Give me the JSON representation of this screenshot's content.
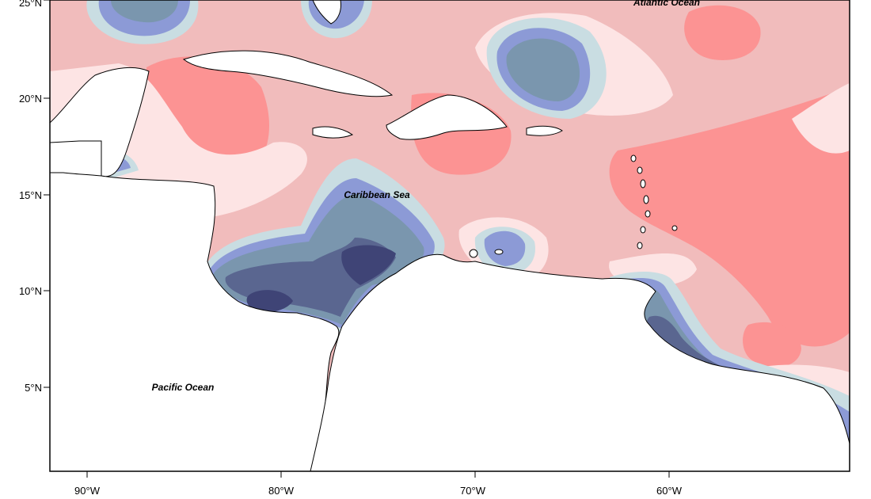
{
  "map": {
    "labels": {
      "atlantic": "Atlantic Ocean",
      "caribbean": "Caribbean Sea",
      "pacific": "Pacific Ocean"
    },
    "lat_ticks": [
      "25°N",
      "20°N",
      "15°N",
      "10°N",
      "5°N"
    ],
    "lon_ticks": [
      "90°W",
      "80°W",
      "70°W",
      "60°W"
    ],
    "extent": {
      "lon_min": -92,
      "lon_max": -51,
      "lat_min": 1,
      "lat_max": 25.5
    },
    "colors": {
      "neg_strong": "#3f4476",
      "neg_mid": "#5a6690",
      "neg_weak": "#7a96ae",
      "neg_light": "#8c9ad6",
      "neg_faint": "#c9dde2",
      "pos_faint": "#fde4e4",
      "pos_light": "#f1bcbc",
      "pos_strong": "#fc9393",
      "land": "#ffffff",
      "coast": "#000000"
    }
  }
}
